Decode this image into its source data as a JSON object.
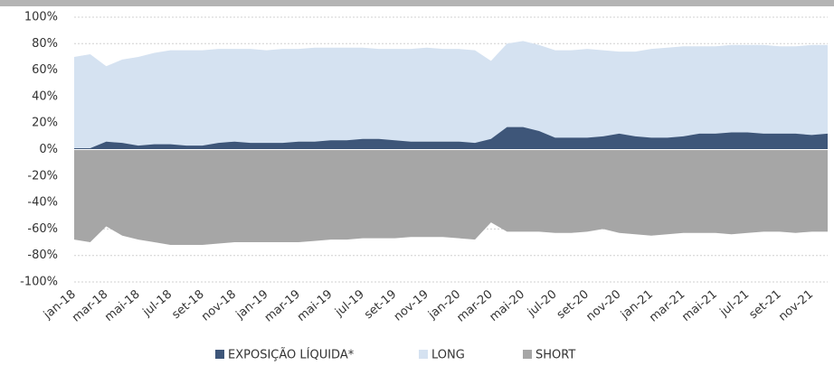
{
  "chart_data": {
    "type": "area",
    "categories": [
      "jan-18",
      null,
      "mar-18",
      null,
      "mai-18",
      null,
      "jul-18",
      null,
      "set-18",
      null,
      "nov-18",
      null,
      "jan-19",
      null,
      "mar-19",
      null,
      "mai-19",
      null,
      "jul-19",
      null,
      "set-19",
      null,
      "nov-19",
      null,
      "jan-20",
      null,
      "mar-20",
      null,
      "mai-20",
      null,
      "jul-20",
      null,
      "set-20",
      null,
      "nov-20",
      null,
      "jan-21",
      null,
      "mar-21",
      null,
      "mai-21",
      null,
      "jul-21",
      null,
      "set-21",
      null,
      "nov-21",
      null
    ],
    "series": [
      {
        "name": "LONG",
        "color": "#d5e2f1",
        "values": [
          70,
          72,
          63,
          68,
          70,
          73,
          75,
          75,
          75,
          76,
          76,
          76,
          75,
          76,
          76,
          77,
          77,
          77,
          77,
          76,
          76,
          76,
          77,
          76,
          76,
          75,
          67,
          80,
          82,
          79,
          75,
          75,
          76,
          75,
          74,
          74,
          76,
          77,
          78,
          78,
          78,
          79,
          79,
          79,
          78,
          78,
          79,
          79
        ]
      },
      {
        "name": "SHORT",
        "color": "#a6a6a6",
        "values": [
          -68,
          -70,
          -58,
          -65,
          -68,
          -70,
          -72,
          -72,
          -72,
          -71,
          -70,
          -70,
          -70,
          -70,
          -70,
          -69,
          -68,
          -68,
          -67,
          -67,
          -67,
          -66,
          -66,
          -66,
          -67,
          -68,
          -55,
          -62,
          -62,
          -62,
          -63,
          -63,
          -62,
          -60,
          -63,
          -64,
          -65,
          -64,
          -63,
          -63,
          -63,
          -64,
          -63,
          -62,
          -62,
          -63,
          -62,
          -62
        ]
      },
      {
        "name": "EXPOSIÇÃO LÍQUIDA*",
        "color": "#3e5679",
        "values": [
          1,
          1,
          6,
          5,
          3,
          4,
          4,
          3,
          3,
          5,
          6,
          5,
          5,
          5,
          6,
          6,
          7,
          7,
          8,
          8,
          7,
          6,
          6,
          6,
          6,
          5,
          8,
          17,
          17,
          14,
          9,
          9,
          9,
          10,
          12,
          10,
          9,
          9,
          10,
          12,
          12,
          13,
          13,
          12,
          12,
          12,
          11,
          12
        ]
      }
    ],
    "legend_order": [
      2,
      0,
      1
    ],
    "ylim": [
      -100,
      100
    ],
    "yticks": [
      {
        "value": -100,
        "label": "-100%"
      },
      {
        "value": -80,
        "label": "-80%"
      },
      {
        "value": -60,
        "label": "-60%"
      },
      {
        "value": -40,
        "label": "-40%"
      },
      {
        "value": -20,
        "label": "-20%"
      },
      {
        "value": 0,
        "label": "0%"
      },
      {
        "value": 20,
        "label": "20%"
      },
      {
        "value": 40,
        "label": "40%"
      },
      {
        "value": 60,
        "label": "60%"
      },
      {
        "value": 80,
        "label": "80%"
      },
      {
        "value": 100,
        "label": "100%"
      }
    ],
    "grid": true
  }
}
